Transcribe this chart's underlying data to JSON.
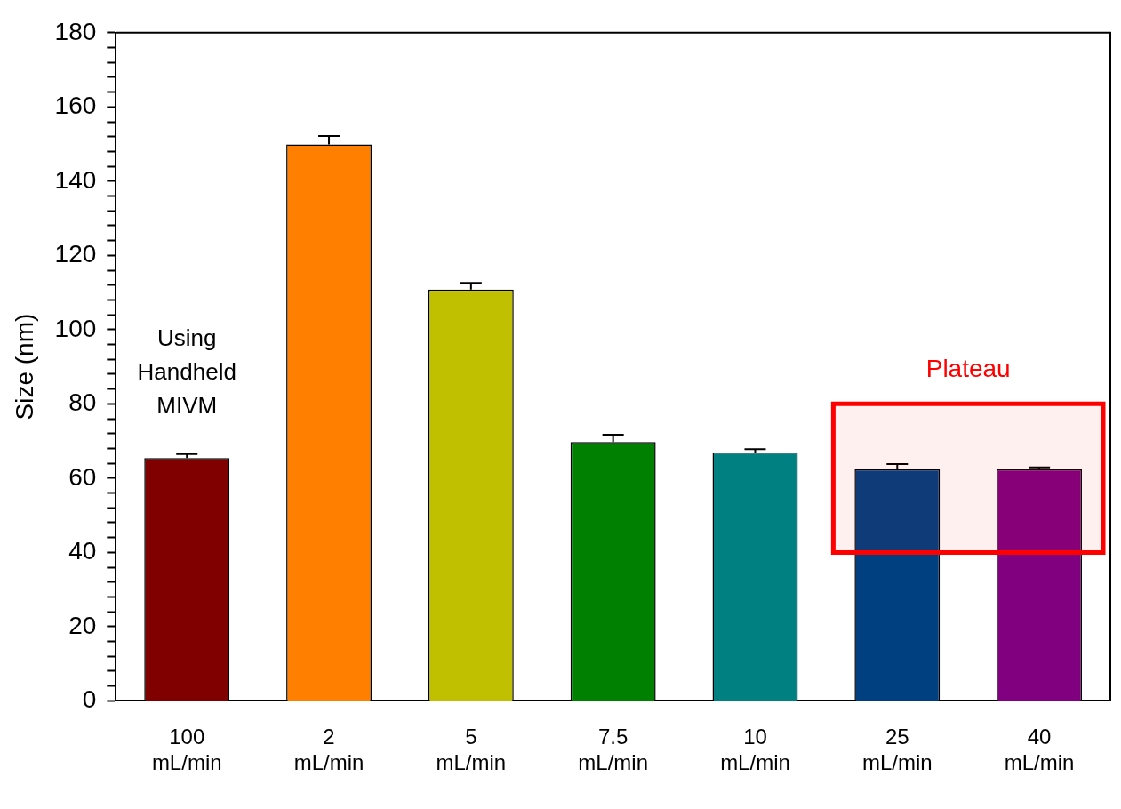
{
  "chart_data": {
    "type": "bar",
    "ylabel": "Size (nm)",
    "categories": [
      "100 mL/min",
      "2 mL/min",
      "5 mL/min",
      "7.5 mL/min",
      "10 mL/min",
      "25 mL/min",
      "40 mL/min"
    ],
    "values": [
      65.4,
      149.9,
      110.8,
      69.7,
      66.9,
      62.4,
      62.4
    ],
    "errors": [
      [
        65.4,
        66.5
      ],
      [
        149.9,
        152.2
      ],
      [
        110.8,
        112.6
      ],
      [
        69.7,
        71.7
      ],
      [
        66.9,
        67.8
      ],
      [
        62.4,
        63.8
      ],
      [
        62.4,
        62.9
      ]
    ],
    "colors": [
      "#800000",
      "#ff8000",
      "#c0c000",
      "#008000",
      "#008080",
      "#004080",
      "#800080"
    ],
    "ylim": [
      0,
      180
    ],
    "yticks": [
      0,
      {
        "value": 4,
        "label": null
      },
      {
        "value": 8,
        "label": null
      },
      {
        "value": 12,
        "label": null
      },
      {
        "value": 16,
        "label": null
      },
      20,
      {
        "value": 24,
        "label": null
      },
      {
        "value": 28,
        "label": null
      },
      {
        "value": 32,
        "label": null
      },
      {
        "value": 36,
        "label": null
      },
      40,
      {
        "value": 44,
        "label": null
      },
      {
        "value": 48,
        "label": null
      },
      {
        "value": 52,
        "label": null
      },
      {
        "value": 56,
        "label": null
      },
      60,
      {
        "value": 64,
        "label": null
      },
      {
        "value": 68,
        "label": null
      },
      {
        "value": 72,
        "label": null
      },
      {
        "value": 76,
        "label": null
      },
      80,
      {
        "value": 84,
        "label": null
      },
      {
        "value": 88,
        "label": null
      },
      {
        "value": 92,
        "label": null
      },
      {
        "value": 96,
        "label": null
      },
      100,
      {
        "value": 104,
        "label": null
      },
      {
        "value": 108,
        "label": null
      },
      {
        "value": 112,
        "label": null
      },
      {
        "value": 116,
        "label": null
      },
      120,
      {
        "value": 124,
        "label": null
      },
      {
        "value": 128,
        "label": null
      },
      {
        "value": 132,
        "label": null
      },
      {
        "value": 136,
        "label": null
      },
      140,
      {
        "value": 144,
        "label": null
      },
      {
        "value": 148,
        "label": null
      },
      {
        "value": 152,
        "label": null
      },
      {
        "value": 156,
        "label": null
      },
      160,
      {
        "value": 164,
        "label": null
      },
      {
        "value": 168,
        "label": null
      },
      {
        "value": 172,
        "label": null
      },
      {
        "value": 176,
        "label": null
      },
      180
    ],
    "grid": false,
    "annotations": [
      "Using Handheld MIVM"
    ],
    "bands": [
      {
        "axis": "y",
        "from": 40,
        "to": 80,
        "label": "Plateau",
        "color": "#ff0000"
      }
    ]
  }
}
